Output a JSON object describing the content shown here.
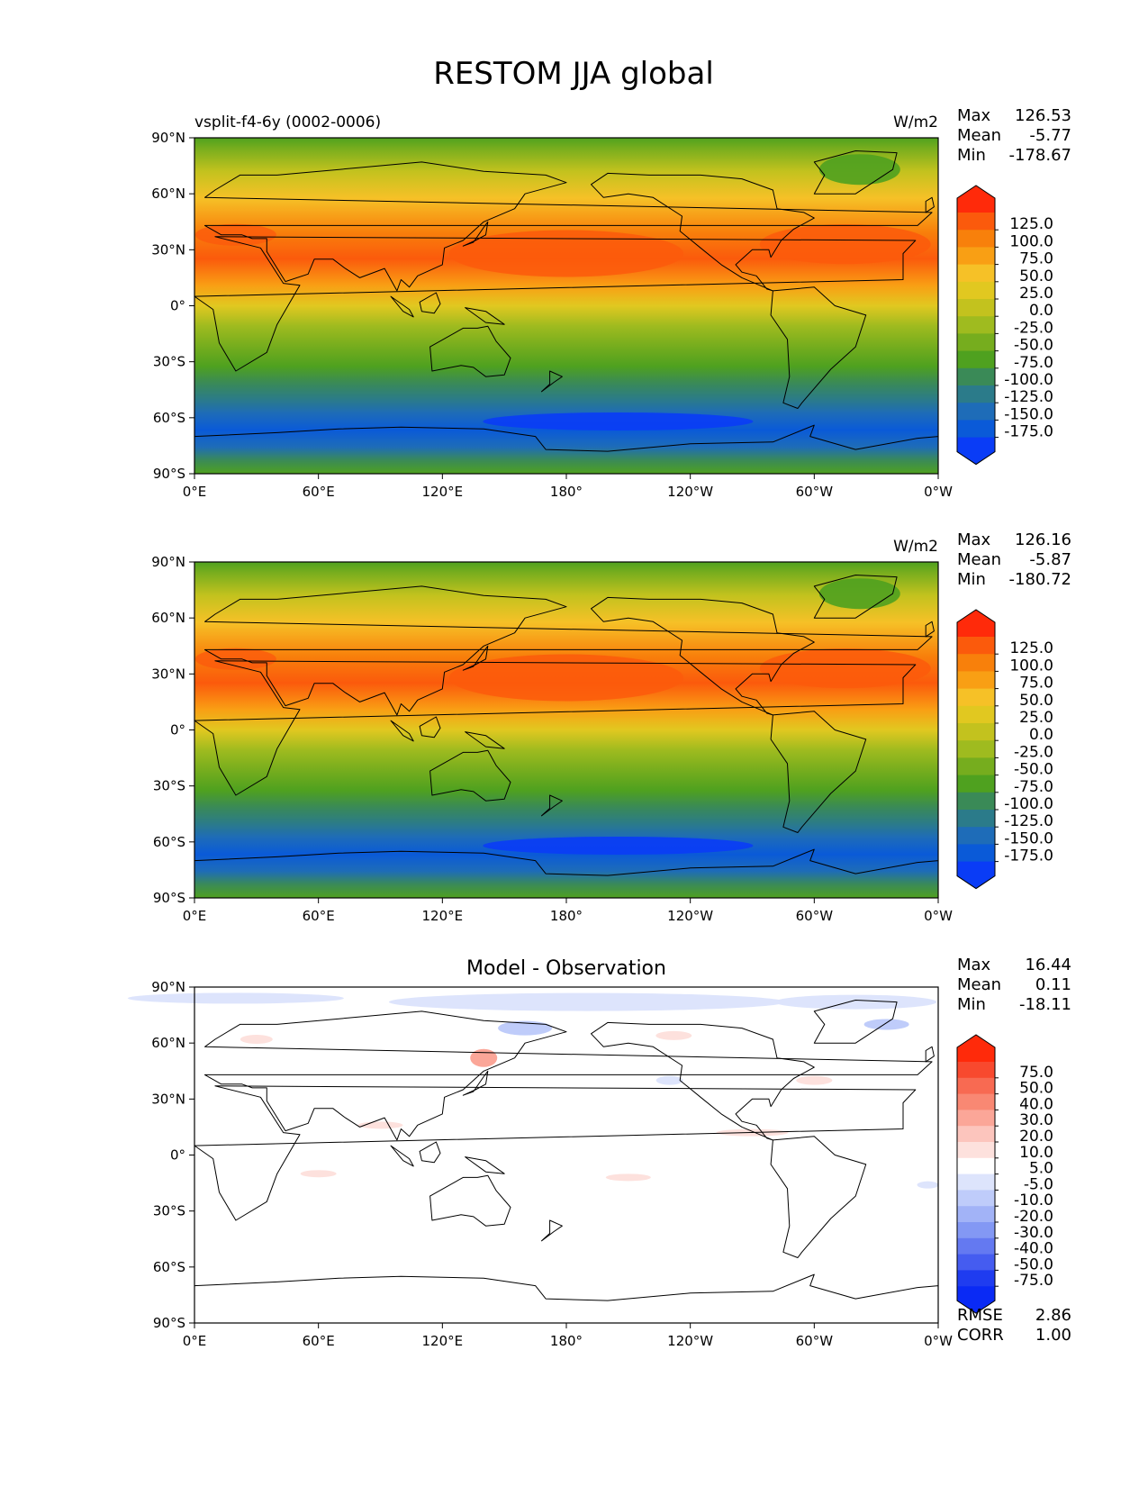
{
  "figure": {
    "title": "RESTOM JJA global"
  },
  "chart_data": [
    {
      "type": "heatmap",
      "panel": "test",
      "title_left": "vsplit-f4-6y (0002-0006)",
      "title_center": "",
      "units": "W/m2",
      "stats": {
        "max_label": "Max",
        "max": "126.53",
        "mean_label": "Mean",
        "mean": "-5.77",
        "min_label": "Min",
        "min": "-178.67"
      },
      "colorbar": {
        "levels": [
          "125.0",
          "100.0",
          "75.0",
          "50.0",
          "25.0",
          "0.0",
          "-25.0",
          "-50.0",
          "-75.0",
          "-100.0",
          "-125.0",
          "-150.0",
          "-175.0"
        ],
        "colors": [
          "#ff2a0a",
          "#fb5a0c",
          "#f8800b",
          "#f99f14",
          "#f6c127",
          "#e1c820",
          "#c3c21e",
          "#9fbb1f",
          "#76ad1e",
          "#4fa11f",
          "#3a8a57",
          "#2b7b8a",
          "#1e6cb8",
          "#0a5ad8",
          "#0a3cf6"
        ],
        "extend": "both"
      },
      "x_ticks": [
        "0°E",
        "60°E",
        "120°E",
        "180°",
        "120°W",
        "60°W",
        "0°W"
      ],
      "y_ticks": [
        "90°N",
        "60°N",
        "30°N",
        "0°",
        "30°S",
        "60°S",
        "90°S"
      ]
    },
    {
      "type": "heatmap",
      "panel": "reference",
      "title_left": "",
      "title_center": "",
      "units": "W/m2",
      "stats": {
        "max_label": "Max",
        "max": "126.16",
        "mean_label": "Mean",
        "mean": "-5.87",
        "min_label": "Min",
        "min": "-180.72"
      },
      "colorbar": {
        "levels": [
          "125.0",
          "100.0",
          "75.0",
          "50.0",
          "25.0",
          "0.0",
          "-25.0",
          "-50.0",
          "-75.0",
          "-100.0",
          "-125.0",
          "-150.0",
          "-175.0"
        ],
        "colors": [
          "#ff2a0a",
          "#fb5a0c",
          "#f8800b",
          "#f99f14",
          "#f6c127",
          "#e1c820",
          "#c3c21e",
          "#9fbb1f",
          "#76ad1e",
          "#4fa11f",
          "#3a8a57",
          "#2b7b8a",
          "#1e6cb8",
          "#0a5ad8",
          "#0a3cf6"
        ],
        "extend": "both"
      },
      "x_ticks": [
        "0°E",
        "60°E",
        "120°E",
        "180°",
        "120°W",
        "60°W",
        "0°W"
      ],
      "y_ticks": [
        "90°N",
        "60°N",
        "30°N",
        "0°",
        "30°S",
        "60°S",
        "90°S"
      ]
    },
    {
      "type": "heatmap",
      "panel": "difference",
      "title_left": "",
      "title_center": "Model - Observation",
      "units": "",
      "stats": {
        "max_label": "Max",
        "max": "16.44",
        "mean_label": "Mean",
        "mean": "0.11",
        "min_label": "Min",
        "min": "-18.11"
      },
      "colorbar": {
        "levels": [
          "75.0",
          "50.0",
          "40.0",
          "30.0",
          "20.0",
          "10.0",
          "5.0",
          "-5.0",
          "-10.0",
          "-20.0",
          "-30.0",
          "-40.0",
          "-50.0",
          "-75.0"
        ],
        "colors": [
          "#ff2a0a",
          "#f8492e",
          "#f86a52",
          "#f98873",
          "#fba698",
          "#fcc5bd",
          "#fde1dd",
          "#ffffff",
          "#dde4fc",
          "#bfccfa",
          "#a2b3f7",
          "#8398f4",
          "#6479f1",
          "#455cf0",
          "#1f3cf0",
          "#0a2af5"
        ],
        "extend": "both"
      },
      "rmse_label": "RMSE",
      "rmse": "2.86",
      "corr_label": "CORR",
      "corr": "1.00",
      "x_ticks": [
        "0°E",
        "60°E",
        "120°E",
        "180°",
        "120°W",
        "60°W",
        "0°W"
      ],
      "y_ticks": [
        "90°N",
        "60°N",
        "30°N",
        "0°",
        "30°S",
        "60°S",
        "90°S"
      ]
    }
  ]
}
